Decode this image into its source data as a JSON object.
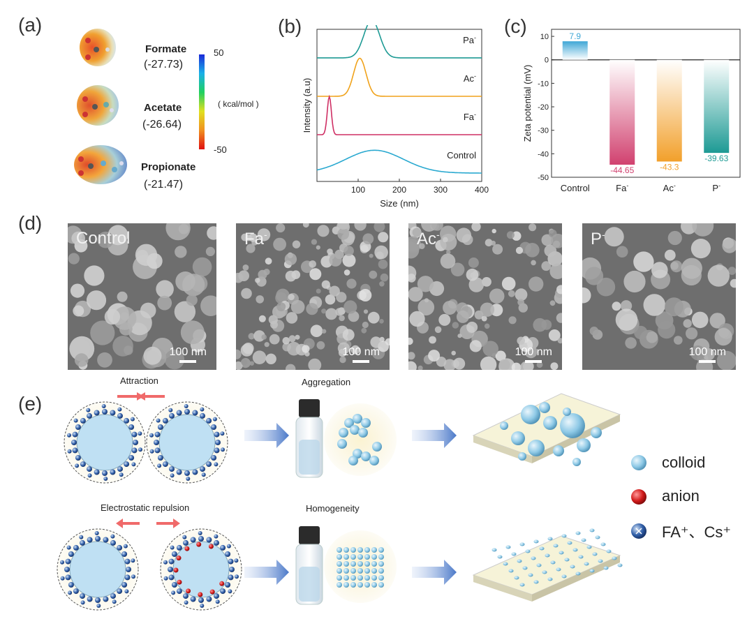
{
  "panel_labels": {
    "a": "(a)",
    "b": "(b)",
    "c": "(c)",
    "d": "(d)",
    "e": "(e)"
  },
  "panel_a": {
    "molecules": [
      {
        "name": "Formate",
        "value": "(-27.73)"
      },
      {
        "name": "Acetate",
        "value": "(-26.64)"
      },
      {
        "name": "Propionate",
        "value": "(-21.47)"
      }
    ],
    "colorbar": {
      "max": "50",
      "min": "-50",
      "unit": "( kcal/mol )"
    }
  },
  "chart_data": [
    {
      "type": "line",
      "title": "",
      "xlabel": "Size (nm)",
      "ylabel": "Intensity (a.u)",
      "xlim": [
        0,
        400
      ],
      "xticks": [
        "100",
        "200",
        "300",
        "400"
      ],
      "series": [
        {
          "name": "Pa-",
          "label": "Pa",
          "sup": "-",
          "color": "#1d9a94",
          "center": 133,
          "width": 19,
          "amp": 1,
          "offset": 3
        },
        {
          "name": "Ac-",
          "label": "Ac",
          "sup": "-",
          "color": "#f0a21a",
          "center": 104,
          "width": 15,
          "amp": 1,
          "offset": 2
        },
        {
          "name": "Fa-",
          "label": "Fa",
          "sup": "-",
          "color": "#cf2f64",
          "center": 30,
          "width": 5,
          "amp": 1,
          "offset": 1
        },
        {
          "name": "Control",
          "label": "Control",
          "sup": "",
          "color": "#2aa9d0",
          "center": 140,
          "width": 70,
          "amp": 0.6,
          "offset": 0
        }
      ]
    },
    {
      "type": "bar",
      "title": "",
      "xlabel": "",
      "ylabel": "Zeta potential (mV)",
      "ylim": [
        -50,
        13
      ],
      "yticks": [
        "10",
        "0",
        "-10",
        "-20",
        "-30",
        "-40",
        "-50"
      ],
      "categories": [
        "Control",
        "Fa-",
        "Ac-",
        "P-"
      ],
      "category_labels": [
        {
          "base": "Control",
          "sup": ""
        },
        {
          "base": "Fa",
          "sup": "-"
        },
        {
          "base": "Ac",
          "sup": "-"
        },
        {
          "base": "P",
          "sup": "-"
        }
      ],
      "values": [
        7.9,
        -44.65,
        -43.3,
        -39.63
      ],
      "value_labels": [
        "7.9",
        "-44.65",
        "-43.3",
        "-39.63"
      ],
      "colors": [
        "#3fa7d6",
        "#d1416f",
        "#f2a02b",
        "#1d9a94"
      ]
    }
  ],
  "panel_d": {
    "images": [
      {
        "label": "Control",
        "scale": "100 nm"
      },
      {
        "label": "Fa",
        "sup": "-",
        "scale": "100 nm"
      },
      {
        "label": "Ac",
        "sup": "-",
        "scale": "100 nm"
      },
      {
        "label": "P",
        "sup": "-",
        "scale": "100 nm"
      }
    ]
  },
  "panel_e": {
    "top_caption": "Attraction",
    "top_middle_caption": "Aggregation",
    "bottom_caption": "Electrostatic repulsion",
    "bottom_middle_caption": "Homogeneity",
    "legend": [
      {
        "label": "colloid",
        "icon": "colloid-sphere-icon",
        "color": "#8ec9e6"
      },
      {
        "label": "anion",
        "icon": "anion-sphere-icon",
        "color": "#d11a1a"
      },
      {
        "label": "FA⁺、Cs⁺",
        "icon": "cation-sphere-icon",
        "color": "#2f5ea8"
      }
    ]
  }
}
